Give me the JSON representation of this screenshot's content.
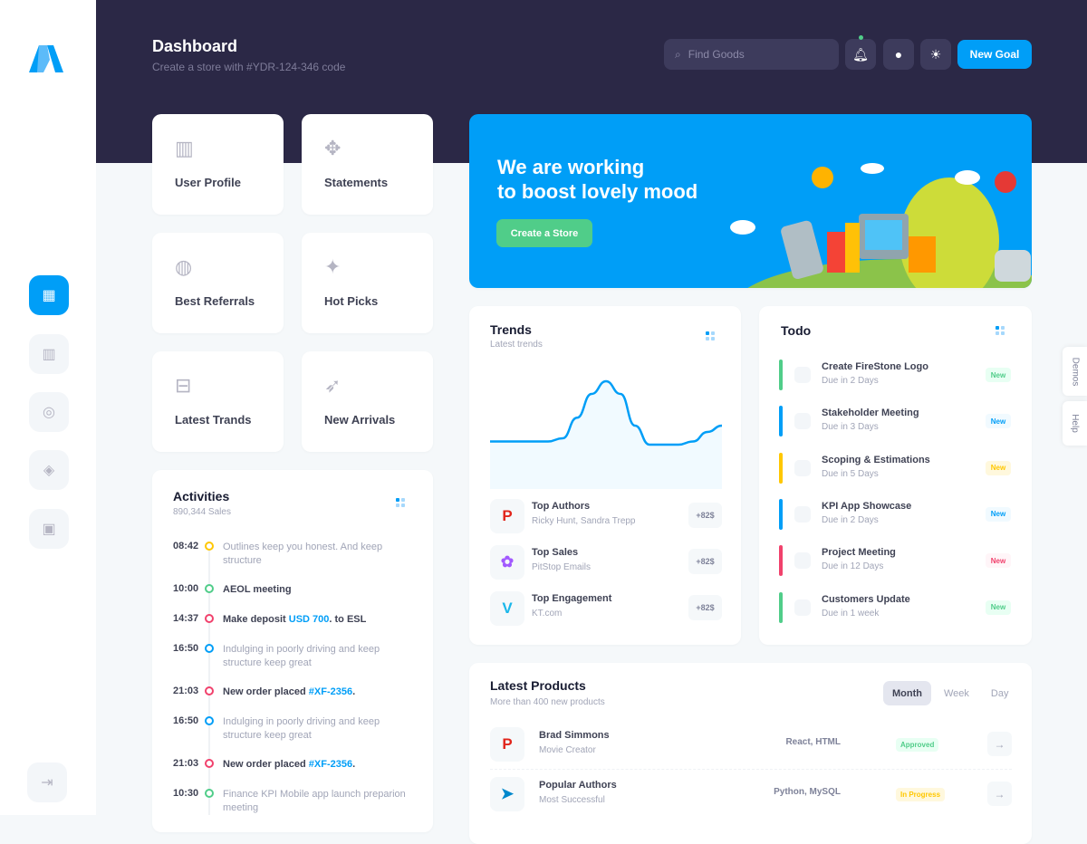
{
  "header": {
    "title": "Dashboard",
    "subtitle": "Create a store with #YDR-124-346 code",
    "search_placeholder": "Find Goods",
    "new_goal": "New Goal"
  },
  "sidebar": {
    "items": [
      "dashboard",
      "gift",
      "lifebuoy",
      "layers",
      "briefcase"
    ],
    "active": "dashboard",
    "logout": "logout"
  },
  "tiles": [
    {
      "label": "User Profile",
      "icon": "gift-icon"
    },
    {
      "label": "Statements",
      "icon": "puzzle-icon"
    },
    {
      "label": "Best Referrals",
      "icon": "fingerprint-icon"
    },
    {
      "label": "Hot Picks",
      "icon": "abstract-icon"
    },
    {
      "label": "Latest Trands",
      "icon": "basket-icon"
    },
    {
      "label": "New Arrivals",
      "icon": "rocket-icon"
    }
  ],
  "banner": {
    "line1": "We are working",
    "line2": "to boost lovely mood",
    "button": "Create a Store"
  },
  "activities": {
    "title": "Activities",
    "subtitle": "890,344 Sales",
    "items": [
      {
        "time": "08:42",
        "color": "#ffc700",
        "text": "Outlines keep you honest. And keep structure",
        "muted": true
      },
      {
        "time": "10:00",
        "color": "#50cd89",
        "text": "AEOL meeting",
        "muted": false
      },
      {
        "time": "14:37",
        "color": "#f1416c",
        "pre": "Make deposit ",
        "link": "USD 700",
        "post": ". to ESL",
        "muted": false
      },
      {
        "time": "16:50",
        "color": "#009ef7",
        "text": "Indulging in poorly driving and keep structure keep great",
        "muted": true
      },
      {
        "time": "21:03",
        "color": "#f1416c",
        "pre": "New order placed ",
        "link": "#XF-2356",
        "post": ".",
        "muted": false
      },
      {
        "time": "16:50",
        "color": "#009ef7",
        "text": "Indulging in poorly driving and keep structure keep great",
        "muted": true
      },
      {
        "time": "21:03",
        "color": "#f1416c",
        "pre": "New order placed ",
        "link": "#XF-2356",
        "post": ".",
        "muted": false
      },
      {
        "time": "10:30",
        "color": "#50cd89",
        "text": "Finance KPI Mobile app launch preparion meeting",
        "muted": true
      }
    ]
  },
  "trends": {
    "title": "Trends",
    "subtitle": "Latest trends",
    "sparkline": [
      30,
      30,
      30,
      30,
      30,
      32,
      45,
      60,
      68,
      60,
      40,
      28,
      28,
      28,
      30,
      36,
      40
    ],
    "items": [
      {
        "name": "Top Authors",
        "sub": "Ricky Hunt, Sandra Trepp",
        "badge": "+82$",
        "icon": "p-logo-icon",
        "color": "#e1251b",
        "glyph": "P"
      },
      {
        "name": "Top Sales",
        "sub": "PitStop Emails",
        "badge": "+82$",
        "icon": "figma-icon",
        "color": "#a259ff",
        "glyph": "✿"
      },
      {
        "name": "Top Engagement",
        "sub": "KT.com",
        "badge": "+82$",
        "icon": "vimeo-icon",
        "color": "#1ab7ea",
        "glyph": "V"
      }
    ]
  },
  "todo": {
    "title": "Todo",
    "items": [
      {
        "name": "Create FireStone Logo",
        "due": "Due in 2 Days",
        "badge": "New",
        "color": "#50cd89",
        "bg": "#e8fff3"
      },
      {
        "name": "Stakeholder Meeting",
        "due": "Due in 3 Days",
        "badge": "New",
        "color": "#009ef7",
        "bg": "#f1faff"
      },
      {
        "name": "Scoping & Estimations",
        "due": "Due in 5 Days",
        "badge": "New",
        "color": "#ffc700",
        "bg": "#fff8dd"
      },
      {
        "name": "KPI App Showcase",
        "due": "Due in 2 Days",
        "badge": "New",
        "color": "#009ef7",
        "bg": "#f1faff"
      },
      {
        "name": "Project Meeting",
        "due": "Due in 12 Days",
        "badge": "New",
        "color": "#f1416c",
        "bg": "#fff5f8"
      },
      {
        "name": "Customers Update",
        "due": "Due in 1 week",
        "badge": "New",
        "color": "#50cd89",
        "bg": "#e8fff3"
      }
    ]
  },
  "products": {
    "title": "Latest Products",
    "subtitle": "More than 400 new products",
    "tabs": [
      "Month",
      "Week",
      "Day"
    ],
    "active_tab": "Month",
    "items": [
      {
        "name": "Brad Simmons",
        "sub": "Movie Creator",
        "tech": "React, HTML",
        "status": "Approved",
        "color": "#50cd89",
        "bg": "#e8fff3",
        "icon": "p-logo-icon",
        "glyph": "P",
        "iconColor": "#e1251b"
      },
      {
        "name": "Popular Authors",
        "sub": "Most Successful",
        "tech": "Python, MySQL",
        "status": "In Progress",
        "color": "#ffc700",
        "bg": "#fff8dd",
        "icon": "telegram-icon",
        "glyph": "➤",
        "iconColor": "#0088cc"
      }
    ]
  },
  "sidetabs": {
    "demos": "Demos",
    "help": "Help"
  }
}
